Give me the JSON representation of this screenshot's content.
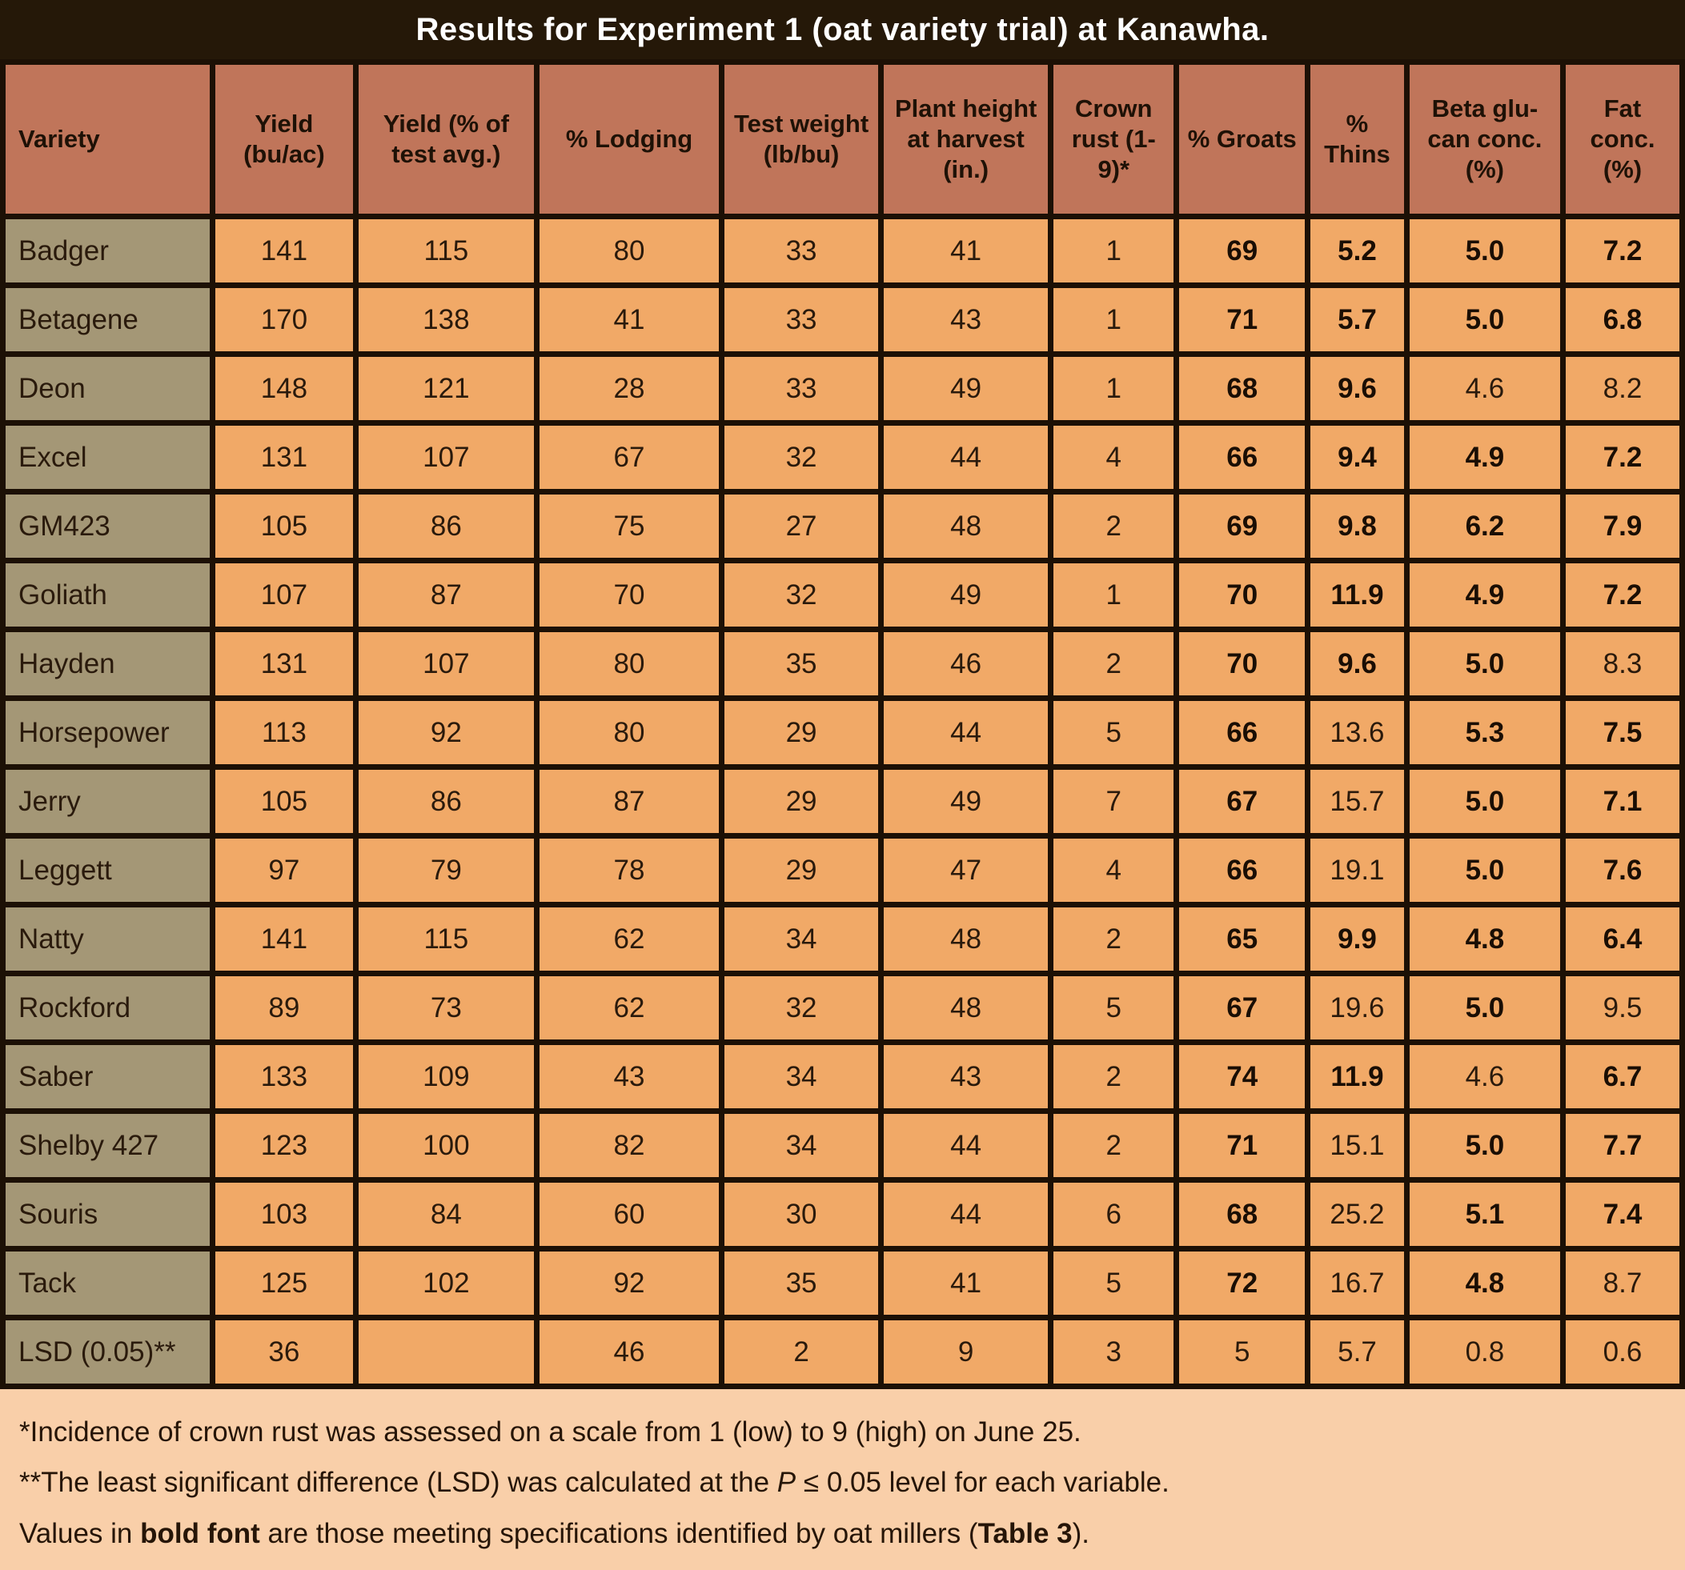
{
  "title": "Results for Experiment 1 (oat variety trial) at Kanawha.",
  "colors": {
    "title_bg": "#251808",
    "title_text": "#ffffff",
    "header_bg": "#c0755a",
    "variety_col_bg": "#a49776",
    "data_cell_bg": "#f1a967",
    "footnote_bg": "#f9cfa9",
    "grid_border": "#1c1005"
  },
  "table": {
    "columns": [
      "Variety",
      "Yield (bu/ac)",
      "Yield (% of test avg.)",
      "% Lodging",
      "Test weight (lb/bu)",
      "Plant height at harvest (in.)",
      "Crown rust (1-9)*",
      "% Groats",
      "% Thins",
      "Beta glu-can conc. (%)",
      "Fat conc. (%)"
    ],
    "rows": [
      {
        "variety": "Badger",
        "cells": [
          {
            "v": "141",
            "b": false
          },
          {
            "v": "115",
            "b": false
          },
          {
            "v": "80",
            "b": false
          },
          {
            "v": "33",
            "b": false
          },
          {
            "v": "41",
            "b": false
          },
          {
            "v": "1",
            "b": false
          },
          {
            "v": "69",
            "b": true
          },
          {
            "v": "5.2",
            "b": true
          },
          {
            "v": "5.0",
            "b": true
          },
          {
            "v": "7.2",
            "b": true
          }
        ]
      },
      {
        "variety": "Betagene",
        "cells": [
          {
            "v": "170",
            "b": false
          },
          {
            "v": "138",
            "b": false
          },
          {
            "v": "41",
            "b": false
          },
          {
            "v": "33",
            "b": false
          },
          {
            "v": "43",
            "b": false
          },
          {
            "v": "1",
            "b": false
          },
          {
            "v": "71",
            "b": true
          },
          {
            "v": "5.7",
            "b": true
          },
          {
            "v": "5.0",
            "b": true
          },
          {
            "v": "6.8",
            "b": true
          }
        ]
      },
      {
        "variety": "Deon",
        "cells": [
          {
            "v": "148",
            "b": false
          },
          {
            "v": "121",
            "b": false
          },
          {
            "v": "28",
            "b": false
          },
          {
            "v": "33",
            "b": false
          },
          {
            "v": "49",
            "b": false
          },
          {
            "v": "1",
            "b": false
          },
          {
            "v": "68",
            "b": true
          },
          {
            "v": "9.6",
            "b": true
          },
          {
            "v": "4.6",
            "b": false
          },
          {
            "v": "8.2",
            "b": false
          }
        ]
      },
      {
        "variety": "Excel",
        "cells": [
          {
            "v": "131",
            "b": false
          },
          {
            "v": "107",
            "b": false
          },
          {
            "v": "67",
            "b": false
          },
          {
            "v": "32",
            "b": false
          },
          {
            "v": "44",
            "b": false
          },
          {
            "v": "4",
            "b": false
          },
          {
            "v": "66",
            "b": true
          },
          {
            "v": "9.4",
            "b": true
          },
          {
            "v": "4.9",
            "b": true
          },
          {
            "v": "7.2",
            "b": true
          }
        ]
      },
      {
        "variety": "GM423",
        "cells": [
          {
            "v": "105",
            "b": false
          },
          {
            "v": "86",
            "b": false
          },
          {
            "v": "75",
            "b": false
          },
          {
            "v": "27",
            "b": false
          },
          {
            "v": "48",
            "b": false
          },
          {
            "v": "2",
            "b": false
          },
          {
            "v": "69",
            "b": true
          },
          {
            "v": "9.8",
            "b": true
          },
          {
            "v": "6.2",
            "b": true
          },
          {
            "v": "7.9",
            "b": true
          }
        ]
      },
      {
        "variety": "Goliath",
        "cells": [
          {
            "v": "107",
            "b": false
          },
          {
            "v": "87",
            "b": false
          },
          {
            "v": "70",
            "b": false
          },
          {
            "v": "32",
            "b": false
          },
          {
            "v": "49",
            "b": false
          },
          {
            "v": "1",
            "b": false
          },
          {
            "v": "70",
            "b": true
          },
          {
            "v": "11.9",
            "b": true
          },
          {
            "v": "4.9",
            "b": true
          },
          {
            "v": "7.2",
            "b": true
          }
        ]
      },
      {
        "variety": "Hayden",
        "cells": [
          {
            "v": "131",
            "b": false
          },
          {
            "v": "107",
            "b": false
          },
          {
            "v": "80",
            "b": false
          },
          {
            "v": "35",
            "b": false
          },
          {
            "v": "46",
            "b": false
          },
          {
            "v": "2",
            "b": false
          },
          {
            "v": "70",
            "b": true
          },
          {
            "v": "9.6",
            "b": true
          },
          {
            "v": "5.0",
            "b": true
          },
          {
            "v": "8.3",
            "b": false
          }
        ]
      },
      {
        "variety": "Horsepower",
        "cells": [
          {
            "v": "113",
            "b": false
          },
          {
            "v": "92",
            "b": false
          },
          {
            "v": "80",
            "b": false
          },
          {
            "v": "29",
            "b": false
          },
          {
            "v": "44",
            "b": false
          },
          {
            "v": "5",
            "b": false
          },
          {
            "v": "66",
            "b": true
          },
          {
            "v": "13.6",
            "b": false
          },
          {
            "v": "5.3",
            "b": true
          },
          {
            "v": "7.5",
            "b": true
          }
        ]
      },
      {
        "variety": "Jerry",
        "cells": [
          {
            "v": "105",
            "b": false
          },
          {
            "v": "86",
            "b": false
          },
          {
            "v": "87",
            "b": false
          },
          {
            "v": "29",
            "b": false
          },
          {
            "v": "49",
            "b": false
          },
          {
            "v": "7",
            "b": false
          },
          {
            "v": "67",
            "b": true
          },
          {
            "v": "15.7",
            "b": false
          },
          {
            "v": "5.0",
            "b": true
          },
          {
            "v": "7.1",
            "b": true
          }
        ]
      },
      {
        "variety": "Leggett",
        "cells": [
          {
            "v": "97",
            "b": false
          },
          {
            "v": "79",
            "b": false
          },
          {
            "v": "78",
            "b": false
          },
          {
            "v": "29",
            "b": false
          },
          {
            "v": "47",
            "b": false
          },
          {
            "v": "4",
            "b": false
          },
          {
            "v": "66",
            "b": true
          },
          {
            "v": "19.1",
            "b": false
          },
          {
            "v": "5.0",
            "b": true
          },
          {
            "v": "7.6",
            "b": true
          }
        ]
      },
      {
        "variety": "Natty",
        "cells": [
          {
            "v": "141",
            "b": false
          },
          {
            "v": "115",
            "b": false
          },
          {
            "v": "62",
            "b": false
          },
          {
            "v": "34",
            "b": false
          },
          {
            "v": "48",
            "b": false
          },
          {
            "v": "2",
            "b": false
          },
          {
            "v": "65",
            "b": true
          },
          {
            "v": "9.9",
            "b": true
          },
          {
            "v": "4.8",
            "b": true
          },
          {
            "v": "6.4",
            "b": true
          }
        ]
      },
      {
        "variety": "Rockford",
        "cells": [
          {
            "v": "89",
            "b": false
          },
          {
            "v": "73",
            "b": false
          },
          {
            "v": "62",
            "b": false
          },
          {
            "v": "32",
            "b": false
          },
          {
            "v": "48",
            "b": false
          },
          {
            "v": "5",
            "b": false
          },
          {
            "v": "67",
            "b": true
          },
          {
            "v": "19.6",
            "b": false
          },
          {
            "v": "5.0",
            "b": true
          },
          {
            "v": "9.5",
            "b": false
          }
        ]
      },
      {
        "variety": "Saber",
        "cells": [
          {
            "v": "133",
            "b": false
          },
          {
            "v": "109",
            "b": false
          },
          {
            "v": "43",
            "b": false
          },
          {
            "v": "34",
            "b": false
          },
          {
            "v": "43",
            "b": false
          },
          {
            "v": "2",
            "b": false
          },
          {
            "v": "74",
            "b": true
          },
          {
            "v": "11.9",
            "b": true
          },
          {
            "v": "4.6",
            "b": false
          },
          {
            "v": "6.7",
            "b": true
          }
        ]
      },
      {
        "variety": "Shelby 427",
        "cells": [
          {
            "v": "123",
            "b": false
          },
          {
            "v": "100",
            "b": false
          },
          {
            "v": "82",
            "b": false
          },
          {
            "v": "34",
            "b": false
          },
          {
            "v": "44",
            "b": false
          },
          {
            "v": "2",
            "b": false
          },
          {
            "v": "71",
            "b": true
          },
          {
            "v": "15.1",
            "b": false
          },
          {
            "v": "5.0",
            "b": true
          },
          {
            "v": "7.7",
            "b": true
          }
        ]
      },
      {
        "variety": "Souris",
        "cells": [
          {
            "v": "103",
            "b": false
          },
          {
            "v": "84",
            "b": false
          },
          {
            "v": "60",
            "b": false
          },
          {
            "v": "30",
            "b": false
          },
          {
            "v": "44",
            "b": false
          },
          {
            "v": "6",
            "b": false
          },
          {
            "v": "68",
            "b": true
          },
          {
            "v": "25.2",
            "b": false
          },
          {
            "v": "5.1",
            "b": true
          },
          {
            "v": "7.4",
            "b": true
          }
        ]
      },
      {
        "variety": "Tack",
        "cells": [
          {
            "v": "125",
            "b": false
          },
          {
            "v": "102",
            "b": false
          },
          {
            "v": "92",
            "b": false
          },
          {
            "v": "35",
            "b": false
          },
          {
            "v": "41",
            "b": false
          },
          {
            "v": "5",
            "b": false
          },
          {
            "v": "72",
            "b": true
          },
          {
            "v": "16.7",
            "b": false
          },
          {
            "v": "4.8",
            "b": true
          },
          {
            "v": "8.7",
            "b": false
          }
        ]
      },
      {
        "variety": "LSD (0.05)**",
        "cells": [
          {
            "v": "36",
            "b": false
          },
          {
            "v": "",
            "b": false
          },
          {
            "v": "46",
            "b": false
          },
          {
            "v": "2",
            "b": false
          },
          {
            "v": "9",
            "b": false
          },
          {
            "v": "3",
            "b": false
          },
          {
            "v": "5",
            "b": false
          },
          {
            "v": "5.7",
            "b": false
          },
          {
            "v": "0.8",
            "b": false
          },
          {
            "v": "0.6",
            "b": false
          }
        ]
      }
    ]
  },
  "footnotes": {
    "line1": "*Incidence of crown rust was assessed on a scale from 1 (low) to 9 (high) on June 25.",
    "line2_pre": "**The least significant difference (LSD) was calculated at the ",
    "line2_italic": "P",
    "line2_post": " ≤ 0.05 level for each variable.",
    "line3_pre": "Values in ",
    "line3_bold1": "bold font",
    "line3_mid": " are those meeting specifications identified by oat millers (",
    "line3_bold2": "Table 3",
    "line3_post": ")."
  },
  "chart_data": {
    "type": "table",
    "title": "Results for Experiment 1 (oat variety trial) at Kanawha.",
    "columns": [
      "Variety",
      "Yield (bu/ac)",
      "Yield (% of test avg.)",
      "% Lodging",
      "Test weight (lb/bu)",
      "Plant height at harvest (in.)",
      "Crown rust (1-9)*",
      "% Groats",
      "% Thins",
      "Beta glu-can conc. (%)",
      "Fat conc. (%)"
    ],
    "rows": [
      [
        "Badger",
        141,
        115,
        80,
        33,
        41,
        1,
        69,
        5.2,
        5.0,
        7.2
      ],
      [
        "Betagene",
        170,
        138,
        41,
        33,
        43,
        1,
        71,
        5.7,
        5.0,
        6.8
      ],
      [
        "Deon",
        148,
        121,
        28,
        33,
        49,
        1,
        68,
        9.6,
        4.6,
        8.2
      ],
      [
        "Excel",
        131,
        107,
        67,
        32,
        44,
        4,
        66,
        9.4,
        4.9,
        7.2
      ],
      [
        "GM423",
        105,
        86,
        75,
        27,
        48,
        2,
        69,
        9.8,
        6.2,
        7.9
      ],
      [
        "Goliath",
        107,
        87,
        70,
        32,
        49,
        1,
        70,
        11.9,
        4.9,
        7.2
      ],
      [
        "Hayden",
        131,
        107,
        80,
        35,
        46,
        2,
        70,
        9.6,
        5.0,
        8.3
      ],
      [
        "Horsepower",
        113,
        92,
        80,
        29,
        44,
        5,
        66,
        13.6,
        5.3,
        7.5
      ],
      [
        "Jerry",
        105,
        86,
        87,
        29,
        49,
        7,
        67,
        15.7,
        5.0,
        7.1
      ],
      [
        "Leggett",
        97,
        79,
        78,
        29,
        47,
        4,
        66,
        19.1,
        5.0,
        7.6
      ],
      [
        "Natty",
        141,
        115,
        62,
        34,
        48,
        2,
        65,
        9.9,
        4.8,
        6.4
      ],
      [
        "Rockford",
        89,
        73,
        62,
        32,
        48,
        5,
        67,
        19.6,
        5.0,
        9.5
      ],
      [
        "Saber",
        133,
        109,
        43,
        34,
        43,
        2,
        74,
        11.9,
        4.6,
        6.7
      ],
      [
        "Shelby 427",
        123,
        100,
        82,
        34,
        44,
        2,
        71,
        15.1,
        5.0,
        7.7
      ],
      [
        "Souris",
        103,
        84,
        60,
        30,
        44,
        6,
        68,
        25.2,
        5.1,
        7.4
      ],
      [
        "Tack",
        125,
        102,
        92,
        35,
        41,
        5,
        72,
        16.7,
        4.8,
        8.7
      ],
      [
        "LSD (0.05)**",
        36,
        null,
        46,
        2,
        9,
        3,
        5,
        5.7,
        0.8,
        0.6
      ]
    ]
  }
}
